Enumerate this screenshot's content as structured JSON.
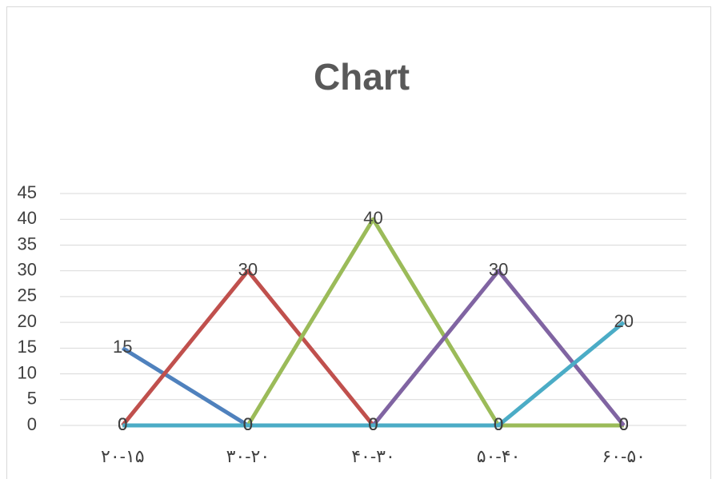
{
  "chart_data": {
    "type": "line",
    "title": "Chart",
    "categories": [
      "۲۰-۱۵",
      "۳۰-۲۰",
      "۴۰-۳۰",
      "۵۰-۴۰",
      "۶۰-۵۰"
    ],
    "series": [
      {
        "color": "#4f81bd",
        "values": [
          15,
          0,
          0,
          0,
          0
        ]
      },
      {
        "color": "#c0504d",
        "values": [
          0,
          30,
          0,
          0,
          0
        ]
      },
      {
        "color": "#9bbb59",
        "values": [
          0,
          0,
          40,
          0,
          0
        ]
      },
      {
        "color": "#8064a2",
        "values": [
          0,
          0,
          0,
          30,
          0
        ]
      },
      {
        "color": "#4bacc6",
        "values": [
          0,
          0,
          0,
          0,
          20
        ]
      }
    ],
    "ylim": [
      0,
      45
    ],
    "yticks": [
      0,
      5,
      10,
      15,
      20,
      25,
      30,
      35,
      40,
      45
    ],
    "grid": true
  }
}
